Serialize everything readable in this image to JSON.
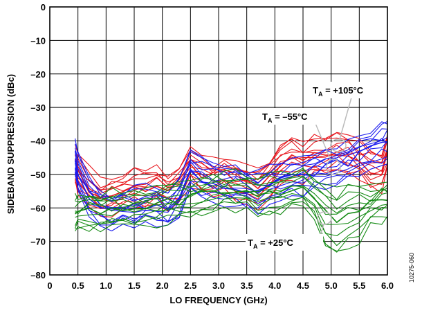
{
  "chart_data": {
    "type": "line",
    "title": "",
    "xlabel": "LO FREQUENCY (GHz)",
    "ylabel": "SIDEBAND SUPPRESSION (dBc)",
    "xlim": [
      0,
      6
    ],
    "ylim": [
      -80,
      0
    ],
    "grid": true,
    "x_tick_labels": [
      "0",
      "0.5",
      "1.0",
      "1.5",
      "2.0",
      "2.5",
      "3.0",
      "3.5",
      "4.0",
      "4.5",
      "5.0",
      "5.5",
      "6.0"
    ],
    "y_tick_labels": [
      "0",
      "–10",
      "–20",
      "–30",
      "–40",
      "–50",
      "–60",
      "–70",
      "–80"
    ],
    "x": [
      0.45,
      0.5,
      0.7,
      0.9,
      1.1,
      1.3,
      1.5,
      1.7,
      1.9,
      2.1,
      2.3,
      2.5,
      2.7,
      2.9,
      3.1,
      3.3,
      3.5,
      3.7,
      3.9,
      4.1,
      4.3,
      4.5,
      4.7,
      4.9,
      5.1,
      5.3,
      5.5,
      5.7,
      5.9,
      6.0
    ],
    "series": [
      {
        "color": "#e8141b",
        "annotation": "+105°C",
        "values": [
          -47,
          -50,
          -54,
          -57,
          -56,
          -55,
          -54,
          -54,
          -53,
          -55,
          -53,
          -48,
          -50,
          -51,
          -50,
          -52,
          -53,
          -54,
          -51,
          -47,
          -45,
          -46,
          -44,
          -44,
          -43,
          -44,
          -46,
          -48,
          -49,
          -43
        ]
      },
      {
        "color": "#1a1aef",
        "annotation": "–55°C",
        "values": [
          -45,
          -50,
          -57,
          -60,
          -61,
          -60,
          -60,
          -59,
          -59,
          -60,
          -57,
          -49,
          -51,
          -52,
          -53,
          -53,
          -54,
          -55,
          -53,
          -52,
          -51,
          -51,
          -49,
          -48,
          -47,
          -46,
          -44,
          -42,
          -41,
          -40
        ]
      },
      {
        "color": "#138a13",
        "annotation": "+25°C",
        "values": [
          -62,
          -62,
          -61,
          -61,
          -60,
          -60,
          -60,
          -59,
          -59,
          -58,
          -58,
          -57,
          -56,
          -56,
          -55,
          -55,
          -55,
          -56,
          -56,
          -55,
          -54,
          -54,
          -57,
          -62,
          -64,
          -62,
          -61,
          -59,
          -58,
          -57
        ]
      }
    ],
    "annotations": [
      {
        "label": "T_A = +105°C",
        "target": "+105°C"
      },
      {
        "label": "T_A = –55°C",
        "target": "–55°C"
      },
      {
        "label": "T_A = +25°C",
        "target": "+25°C"
      }
    ]
  },
  "labels": {
    "ann_105_main": "T",
    "ann_105_sub": "A",
    "ann_105_rest": " = +105°C",
    "ann_55_main": "T",
    "ann_55_sub": "A",
    "ann_55_rest": " = –55°C",
    "ann_25_main": "T",
    "ann_25_sub": "A",
    "ann_25_rest": " = +25°C",
    "figure_id": "10275-060"
  }
}
